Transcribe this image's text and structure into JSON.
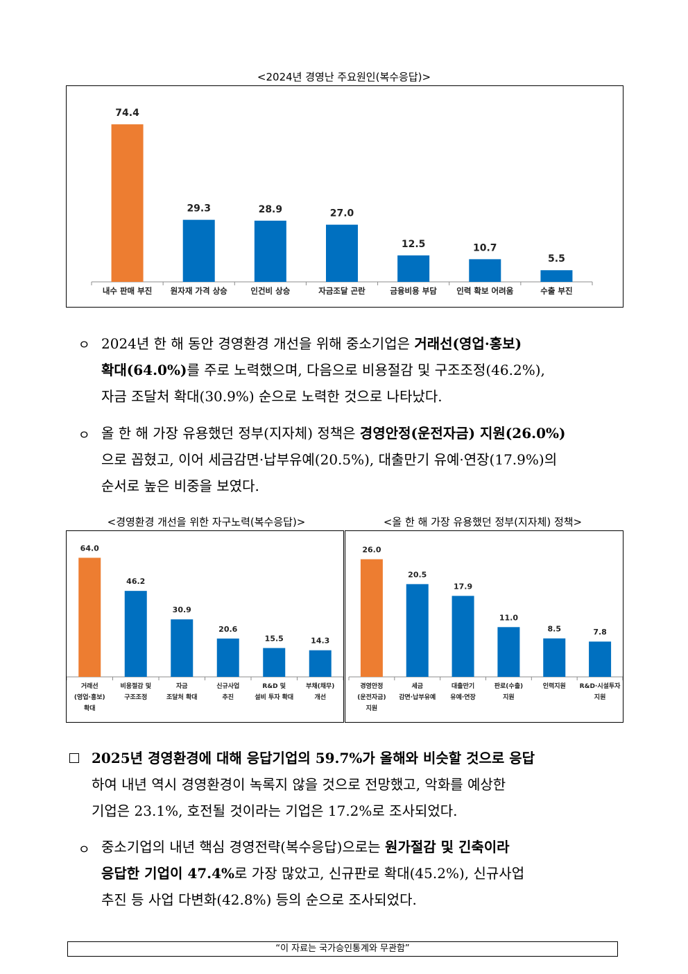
{
  "charts": [
    {
      "caption": "<2024년 경영난 주요원인(복수응답)>",
      "chart_data": {
        "type": "bar",
        "title": "<2024년 경영난 주요원인(복수응답)>",
        "categories": [
          "내수 판매 부진",
          "원자재 가격 상승",
          "인건비 상승",
          "자금조달 곤란",
          "금융비용 부담",
          "인력 확보 어려움",
          "수출 부진"
        ],
        "category_lines": [
          [
            "내수 판매 부진"
          ],
          [
            "원자재 가격 상승"
          ],
          [
            "인건비 상승"
          ],
          [
            "자금조달 곤란"
          ],
          [
            "금융비용 부담"
          ],
          [
            "인력 확보 어려움"
          ],
          [
            "수출 부진"
          ]
        ],
        "values": [
          74.4,
          29.3,
          28.9,
          27.0,
          12.5,
          10.7,
          5.5
        ],
        "value_labels": [
          "74.4",
          "29.3",
          "28.9",
          "27.0",
          "12.5",
          "10.7",
          "5.5"
        ],
        "ylim": [
          0,
          80
        ],
        "grid": false,
        "legend": "none",
        "colors": {
          "highlight": "#ED7D31",
          "default": "#0070C0"
        },
        "highlight_index": 0
      }
    },
    {
      "caption": "<경영환경 개선을 위한 자구노력(복수응답)>",
      "chart_data": {
        "type": "bar",
        "title": "<경영환경 개선을 위한 자구노력(복수응답)>",
        "categories": [
          "거래선 (영업·홍보) 확대",
          "비용절감 및 구조조정",
          "자금 조달처 확대",
          "신규사업 추진",
          "R&D 및 설비 투자 확대",
          "부채(채무) 개선"
        ],
        "category_lines": [
          [
            "거래선",
            "(영업·홍보)",
            "확대"
          ],
          [
            "비용절감 및",
            "구조조정"
          ],
          [
            "자금",
            "조달처 확대"
          ],
          [
            "신규사업",
            "추진"
          ],
          [
            "R&D 및",
            "설비 투자 확대"
          ],
          [
            "부채(채무)",
            "개선"
          ]
        ],
        "values": [
          64.0,
          46.2,
          30.9,
          20.6,
          15.5,
          14.3
        ],
        "value_labels": [
          "64.0",
          "46.2",
          "30.9",
          "20.6",
          "15.5",
          "14.3"
        ],
        "ylim": [
          0,
          72
        ],
        "grid": false,
        "legend": "none",
        "colors": {
          "highlight": "#ED7D31",
          "default": "#0070C0"
        },
        "highlight_index": 0
      }
    },
    {
      "caption": "<올 한 해 가장 유용했던 정부(지자체) 정책>",
      "chart_data": {
        "type": "bar",
        "title": "<올 한 해 가장 유용했던 정부(지자체) 정책>",
        "categories": [
          "경영안정 (운전자금) 지원",
          "세금 감면·납부유예",
          "대출만기 유예·연장",
          "판로(수출) 지원",
          "인력지원",
          "R&D·시설투자 지원"
        ],
        "category_lines": [
          [
            "경영안정",
            "(운전자금)",
            "지원"
          ],
          [
            "세금",
            "감면·납부유예"
          ],
          [
            "대출만기",
            "유예·연장"
          ],
          [
            "판로(수출)",
            "지원"
          ],
          [
            "인력지원"
          ],
          [
            "R&D·시설투자",
            "지원"
          ]
        ],
        "values": [
          26.0,
          20.5,
          17.9,
          11.0,
          8.5,
          7.8
        ],
        "value_labels": [
          "26.0",
          "20.5",
          "17.9",
          "11.0",
          "8.5",
          "7.8"
        ],
        "ylim": [
          0,
          29
        ],
        "grid": false,
        "legend": "none",
        "colors": {
          "highlight": "#ED7D31",
          "default": "#0070C0"
        },
        "highlight_index": 0
      }
    }
  ],
  "bullet_marks": {
    "circle": "ㅇ",
    "square": "□"
  },
  "paragraphs": {
    "p1": {
      "l1a": "2024년 한 해 동안 경영환경 개선을 위해 중소기업은 ",
      "l1b": "거래선(영업·홍보)",
      "l2a": "확대(64.0%)",
      "l2b": "를 주로 노력했으며, 다음으로 비용절감 및 구조조정(46.2%),",
      "l3": "자금 조달처 확대(30.9%) 순으로 노력한 것으로 나타났다."
    },
    "p2": {
      "l1a": "올 한 해 가장 유용했던 정부(지자체) 정책은 ",
      "l1b": "경영안정(운전자금) 지원(26.0%)",
      "l2": "으로 꼽혔고, 이어 세금감면·납부유예(20.5%), 대출만기 유예·연장(17.9%)의",
      "l3": "순서로 높은 비중을 보였다."
    },
    "p3": {
      "l1": "2025년 경영환경에 대해 응답기업의 59.7%가 올해와 비슷할 것으로 응답",
      "l2": "하여 내년 역시 경영환경이 녹록지 않을 것으로 전망했고, 악화를 예상한",
      "l3": "기업은 23.1%, 호전될 것이라는 기업은 17.2%로 조사되었다."
    },
    "p4": {
      "l1a": "중소기업의 내년 핵심 경영전략(복수응답)으로는 ",
      "l1b": "원가절감 및 긴축이라",
      "l2a": "응답한 기업이 47.4%",
      "l2b": "로 가장 많았고, 신규판로 확대(45.2%), 신규사업",
      "l3": "추진 등 사업 다변화(42.8%) 등의 순으로 조사되었다."
    }
  },
  "footer": "“이 자료는 국가승인통계와 무관함”"
}
